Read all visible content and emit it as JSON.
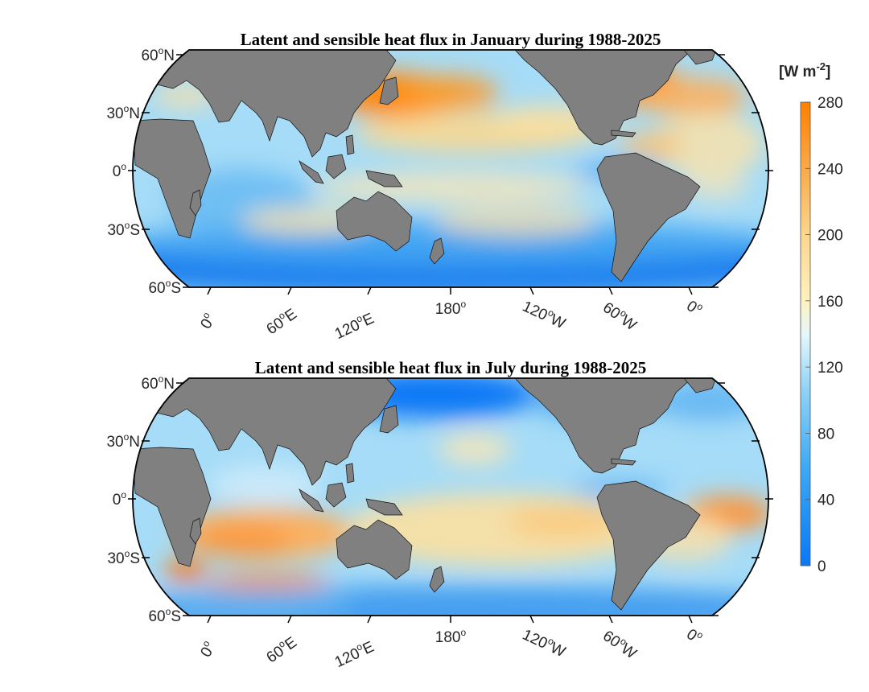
{
  "colors": {
    "land": "#808080",
    "ocean_base": "#a6dcf7",
    "high": "#ff8000",
    "low": "#0a78f5"
  },
  "panels": [
    {
      "title": "Latent and sensible heat flux in January during 1988-2025",
      "month": "January"
    },
    {
      "title": "Latent and sensible heat flux in July during 1988-2025",
      "month": "July"
    }
  ],
  "lat_labels": [
    {
      "num": "60",
      "deg": "o",
      "hem": "N"
    },
    {
      "num": "30",
      "deg": "o",
      "hem": "N"
    },
    {
      "num": "0",
      "deg": "o",
      "hem": ""
    },
    {
      "num": "30",
      "deg": "o",
      "hem": "S"
    },
    {
      "num": "60",
      "deg": "o",
      "hem": "S"
    }
  ],
  "lon_labels": [
    {
      "num": "0",
      "deg": "o",
      "hem": ""
    },
    {
      "num": "60",
      "deg": "o",
      "hem": "E"
    },
    {
      "num": "120",
      "deg": "o",
      "hem": "E"
    },
    {
      "num": "180",
      "deg": "o",
      "hem": ""
    },
    {
      "num": "120",
      "deg": "o",
      "hem": "W"
    },
    {
      "num": "60",
      "deg": "o",
      "hem": "W"
    },
    {
      "num": "0",
      "deg": "o",
      "hem": ""
    }
  ],
  "colorbar": {
    "unit_base": "[W m",
    "unit_exp": "-2",
    "unit_close": "]",
    "min": 0,
    "max": 280,
    "ticks": [
      "280",
      "240",
      "200",
      "160",
      "120",
      "80",
      "40",
      "0"
    ]
  }
}
